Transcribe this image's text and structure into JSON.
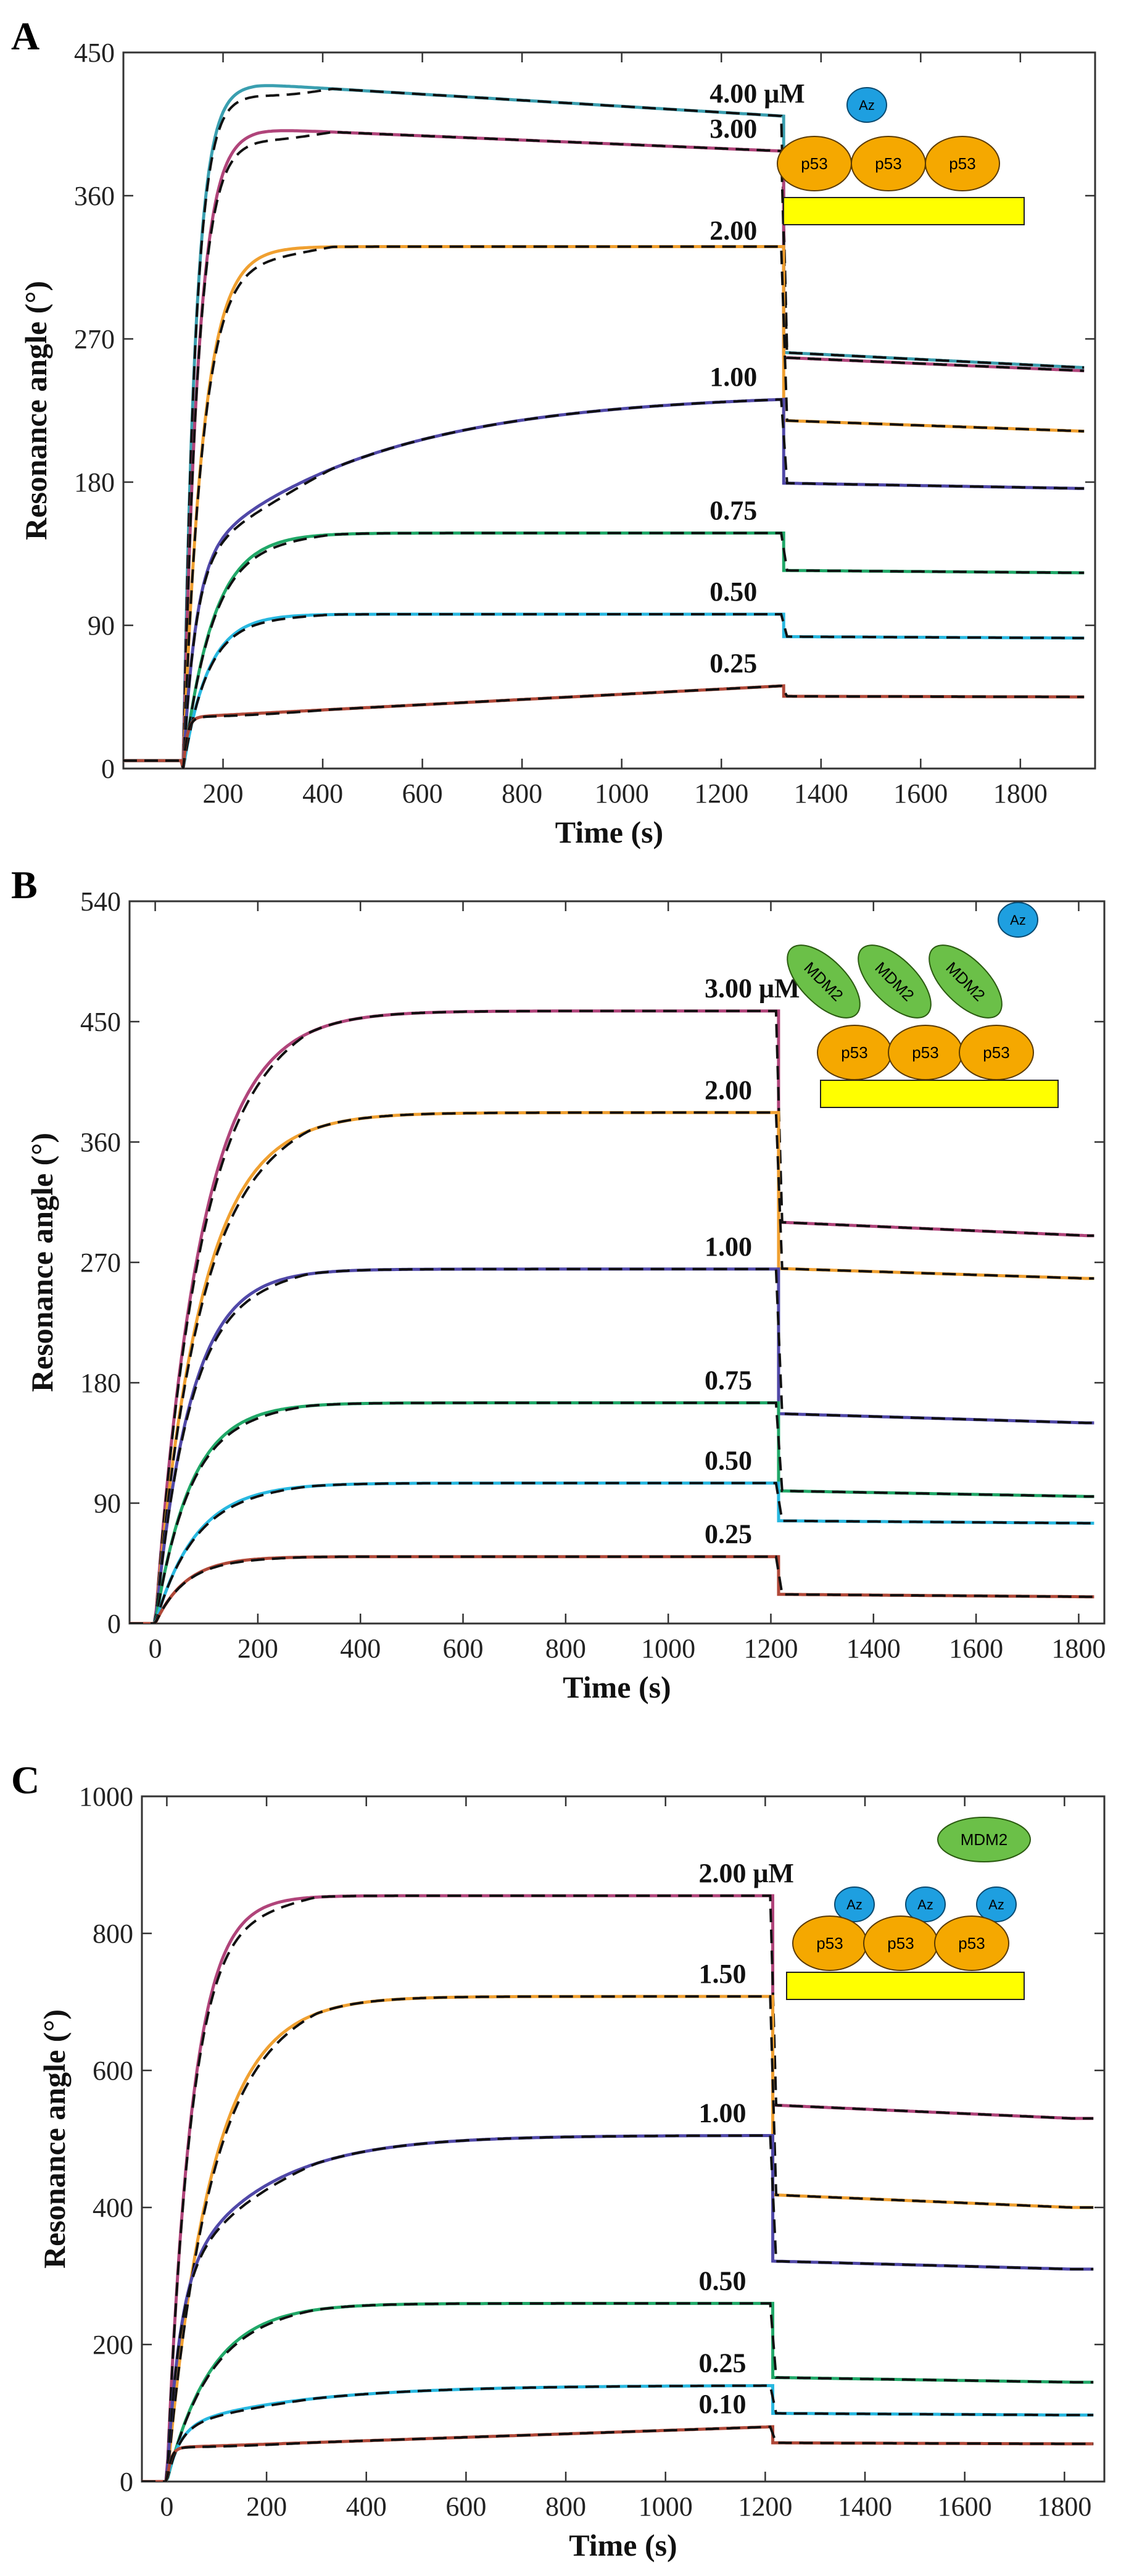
{
  "chart_data": [
    {
      "type": "line",
      "panel": "A",
      "xlabel": "Time (s)",
      "ylabel": "Resonance angle (°)",
      "xlim": [
        0,
        1950
      ],
      "ylim": [
        0,
        450
      ],
      "xticks": [
        200,
        400,
        600,
        800,
        1000,
        1200,
        1400,
        1600,
        1800
      ],
      "yticks": [
        0,
        90,
        180,
        270,
        360,
        450
      ],
      "injection_time": 120,
      "dissociation_time": 1325,
      "baseline": 5,
      "series": [
        {
          "name": "4.00 μM",
          "label": "4.00 μM",
          "color": "#3a9fb0",
          "peak": 430,
          "end_assoc": 410,
          "end_dissoc": 252,
          "shape": "overshoot",
          "tau": 25
        },
        {
          "name": "3.00",
          "label": "3.00",
          "color": "#b0447a",
          "peak": 402,
          "end_assoc": 388,
          "end_dissoc": 250,
          "shape": "overshoot",
          "tau": 30
        },
        {
          "name": "2.00",
          "label": "2.00",
          "color": "#f0a030",
          "peak": 328,
          "end_assoc": 324,
          "end_dissoc": 212,
          "shape": "rise",
          "tau": 40
        },
        {
          "name": "1.00",
          "label": "1.00",
          "color": "#5048a8",
          "peak": 232,
          "end_assoc": 232,
          "end_dissoc": 176,
          "shape": "slow",
          "tau": 150
        },
        {
          "name": "0.75",
          "label": "0.75",
          "color": "#20a868",
          "peak": 148,
          "end_assoc": 148,
          "end_dissoc": 123,
          "shape": "rise",
          "tau": 60
        },
        {
          "name": "0.50",
          "label": "0.50",
          "color": "#28b8e0",
          "peak": 97,
          "end_assoc": 97,
          "end_dissoc": 82,
          "shape": "rise",
          "tau": 50
        },
        {
          "name": "0.25",
          "label": "0.25",
          "color": "#b04838",
          "peak": 52,
          "end_assoc": 52,
          "end_dissoc": 45,
          "shape": "slowlin",
          "tau": 60
        }
      ],
      "schematic": {
        "az": "Az",
        "beads": [
          "p53",
          "p53",
          "p53"
        ]
      }
    },
    {
      "type": "line",
      "panel": "B",
      "xlabel": "Time (s)",
      "ylabel": "Resonance angle (°)",
      "xlim": [
        -50,
        1850
      ],
      "ylim": [
        0,
        540
      ],
      "xticks": [
        0,
        200,
        400,
        600,
        800,
        1000,
        1200,
        1400,
        1600,
        1800
      ],
      "yticks": [
        0,
        90,
        180,
        270,
        360,
        450,
        540
      ],
      "injection_time": 0,
      "dissociation_time": 1215,
      "baseline": 0,
      "series": [
        {
          "name": "3.00 μM",
          "label": "3.00 μM",
          "color": "#b0447a",
          "peak": 458,
          "end_assoc": 458,
          "end_dissoc": 290,
          "shape": "rise",
          "tau": 90
        },
        {
          "name": "2.00",
          "label": "2.00",
          "color": "#f0a030",
          "peak": 382,
          "end_assoc": 382,
          "end_dissoc": 258,
          "shape": "rise",
          "tau": 90
        },
        {
          "name": "1.00",
          "label": "1.00",
          "color": "#5048a8",
          "peak": 265,
          "end_assoc": 265,
          "end_dissoc": 150,
          "shape": "rise",
          "tau": 70
        },
        {
          "name": "0.75",
          "label": "0.75",
          "color": "#20a868",
          "peak": 165,
          "end_assoc": 165,
          "end_dissoc": 95,
          "shape": "rise",
          "tau": 70
        },
        {
          "name": "0.50",
          "label": "0.50",
          "color": "#28b8e0",
          "peak": 105,
          "end_assoc": 105,
          "end_dissoc": 75,
          "shape": "rise",
          "tau": 80
        },
        {
          "name": "0.25",
          "label": "0.25",
          "color": "#b04838",
          "peak": 50,
          "end_assoc": 50,
          "end_dissoc": 20,
          "shape": "rise",
          "tau": 60
        }
      ],
      "schematic": {
        "az": "Az",
        "mdm2": [
          "MDM2",
          "MDM2",
          "MDM2"
        ],
        "beads": [
          "p53",
          "p53",
          "p53"
        ]
      }
    },
    {
      "type": "line",
      "panel": "C",
      "xlabel": "Time (s)",
      "ylabel": "Resonance angle (°)",
      "xlim": [
        -50,
        1880
      ],
      "ylim": [
        0,
        1000
      ],
      "xticks": [
        0,
        200,
        400,
        600,
        800,
        1000,
        1200,
        1400,
        1600,
        1800
      ],
      "yticks": [
        0,
        200,
        400,
        600,
        800,
        1000
      ],
      "injection_time": 0,
      "dissociation_time": 1215,
      "baseline": 0,
      "series": [
        {
          "name": "2.00 μM",
          "label": "2.00 μM",
          "color": "#b0447a",
          "peak": 855,
          "end_assoc": 855,
          "end_dissoc": 530,
          "shape": "rise",
          "tau": 50
        },
        {
          "name": "1.50",
          "label": "1.50",
          "color": "#f0a030",
          "peak": 708,
          "end_assoc": 708,
          "end_dissoc": 400,
          "shape": "rise",
          "tau": 90
        },
        {
          "name": "1.00",
          "label": "1.00",
          "color": "#5048a8",
          "peak": 505,
          "end_assoc": 505,
          "end_dissoc": 310,
          "shape": "slow",
          "tau": 70
        },
        {
          "name": "0.50",
          "label": "0.50",
          "color": "#20a868",
          "peak": 260,
          "end_assoc": 260,
          "end_dissoc": 145,
          "shape": "rise",
          "tau": 90
        },
        {
          "name": "0.25",
          "label": "0.25",
          "color": "#28b8e0",
          "peak": 140,
          "end_assoc": 140,
          "end_dissoc": 97,
          "shape": "slow",
          "tau": 100
        },
        {
          "name": "0.10",
          "label": "0.10",
          "color": "#b04838",
          "peak": 80,
          "end_assoc": 80,
          "end_dissoc": 55,
          "shape": "slowlin",
          "tau": 100
        }
      ],
      "schematic": {
        "mdm2": "MDM2",
        "az": [
          "Az",
          "Az",
          "Az"
        ],
        "beads": [
          "p53",
          "p53",
          "p53"
        ]
      }
    }
  ]
}
